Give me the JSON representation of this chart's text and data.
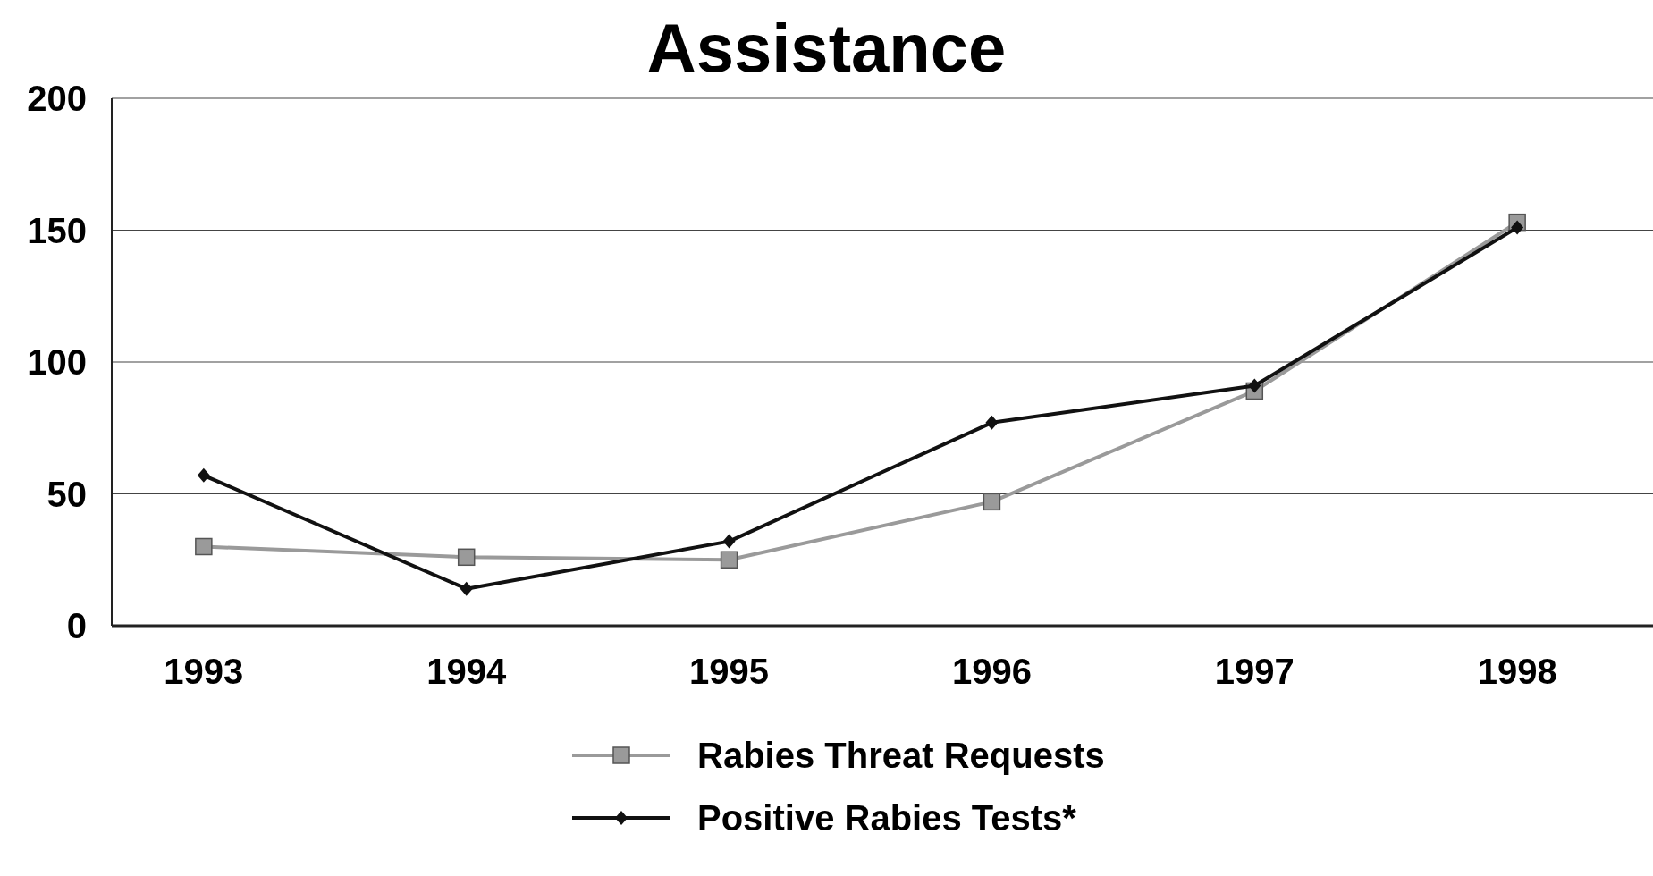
{
  "chart_data": {
    "type": "line",
    "title": "Assistance",
    "categories": [
      "1993",
      "1994",
      "1995",
      "1996",
      "1997",
      "1998"
    ],
    "series": [
      {
        "name": "Rabies Threat Requests",
        "color": "#9a9a9a",
        "marker": "square",
        "values": [
          30,
          26,
          25,
          47,
          89,
          153
        ]
      },
      {
        "name": "Positive Rabies Tests*",
        "color": "#111111",
        "marker": "diamond",
        "values": [
          57,
          14,
          32,
          77,
          91,
          151
        ]
      }
    ],
    "ylim": [
      0,
      200
    ],
    "yticks": [
      0,
      50,
      100,
      150,
      200
    ],
    "grid": "y",
    "legend": "bottom"
  }
}
